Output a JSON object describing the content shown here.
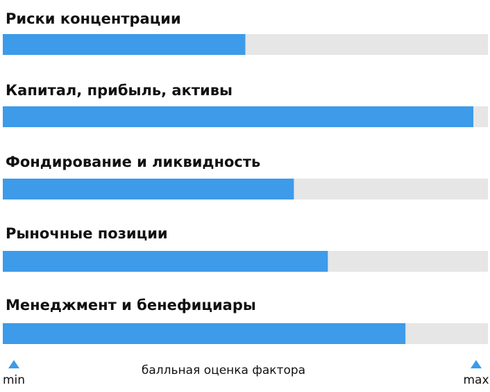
{
  "chart_data": {
    "type": "bar",
    "orientation": "horizontal",
    "categories": [
      "Риски концентрации",
      "Капитал, прибыль, активы",
      "Фондирование и ликвидность",
      "Рыночные позиции",
      "Менеджмент и бенефициары"
    ],
    "values": [
      50,
      97,
      60,
      67,
      83
    ],
    "color": "#3d9be9",
    "track_color": "#e6e6e6",
    "xlim": [
      0,
      100
    ],
    "xticks": [
      {
        "value": 0,
        "label": "min"
      },
      {
        "value": 100,
        "label": "max"
      }
    ],
    "xlabel": "балльная оценка фактора"
  }
}
